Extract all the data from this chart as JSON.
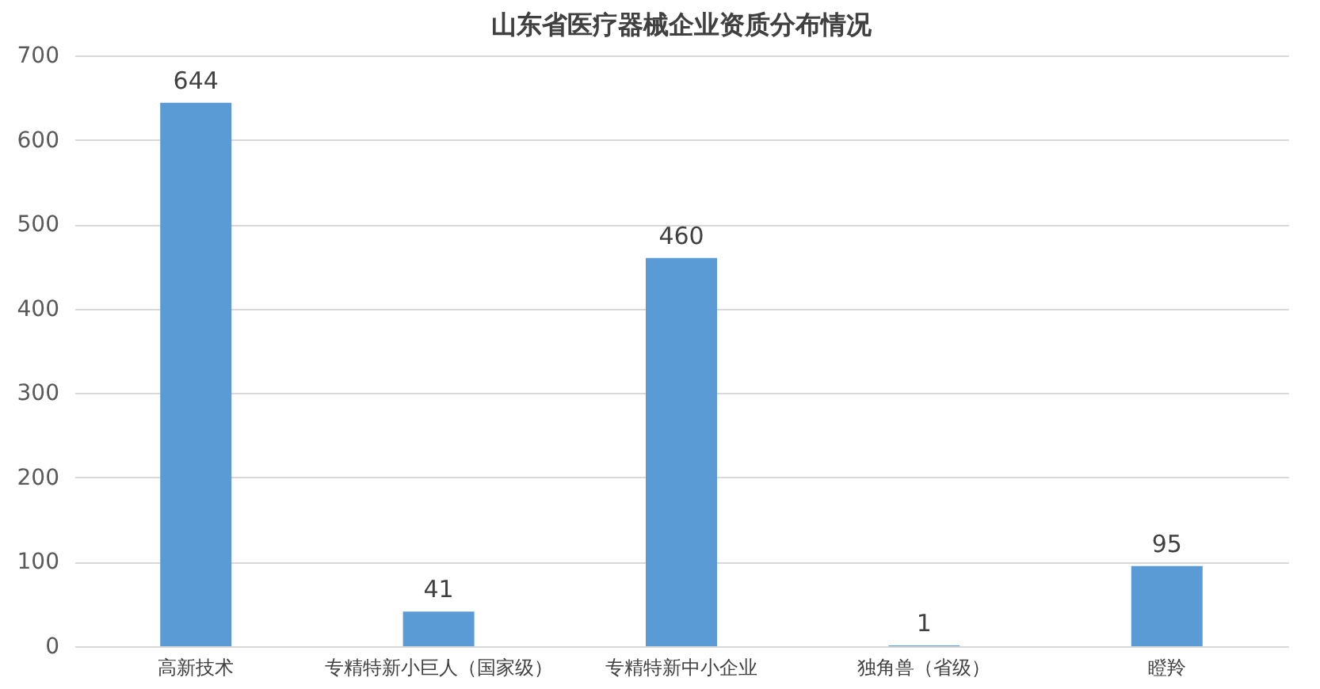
{
  "chart_data": {
    "type": "bar",
    "title": "山东省医疗器械企业资质分布情况",
    "categories": [
      "高新技术",
      "专精特新小巨人（国家级）",
      "专精特新中小企业",
      "独角兽（省级）",
      "瞪羚"
    ],
    "values": [
      644,
      41,
      460,
      1,
      95
    ],
    "color": "#5b9bd5",
    "ylim": [
      0,
      700
    ],
    "yticks": [
      0,
      100,
      200,
      300,
      400,
      500,
      600,
      700
    ],
    "grid": "y",
    "data_labels": true
  }
}
